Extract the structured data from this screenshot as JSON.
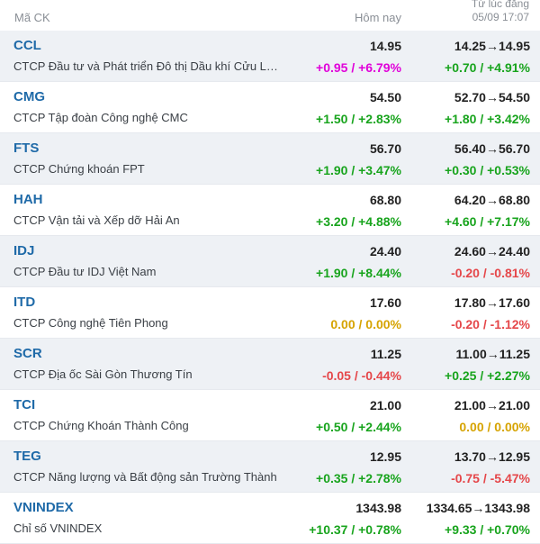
{
  "header": {
    "code_label": "Mã CK",
    "today_label": "Hôm nay",
    "since_label": "Từ lúc đăng",
    "since_time": "05/09 17:07"
  },
  "stocks": [
    {
      "code": "CCL",
      "name": "CTCP Đầu tư và Phát triển Đô thị Dầu khí Cửu Long",
      "price": "14.95",
      "change": "+0.95 / +6.79%",
      "change_type": "ceil",
      "range": "14.25→14.95",
      "change2": "+0.70 / +4.91%",
      "change2_type": "up"
    },
    {
      "code": "CMG",
      "name": "CTCP Tập đoàn Công nghệ CMC",
      "price": "54.50",
      "change": "+1.50 / +2.83%",
      "change_type": "up",
      "range": "52.70→54.50",
      "change2": "+1.80 / +3.42%",
      "change2_type": "up"
    },
    {
      "code": "FTS",
      "name": "CTCP Chứng khoán FPT",
      "price": "56.70",
      "change": "+1.90 / +3.47%",
      "change_type": "up",
      "range": "56.40→56.70",
      "change2": "+0.30 / +0.53%",
      "change2_type": "up"
    },
    {
      "code": "HAH",
      "name": "CTCP Vận tải và Xếp dỡ Hải An",
      "price": "68.80",
      "change": "+3.20 / +4.88%",
      "change_type": "up",
      "range": "64.20→68.80",
      "change2": "+4.60 / +7.17%",
      "change2_type": "up"
    },
    {
      "code": "IDJ",
      "name": "CTCP Đầu tư IDJ Việt Nam",
      "price": "24.40",
      "change": "+1.90 / +8.44%",
      "change_type": "up",
      "range": "24.60→24.40",
      "change2": "-0.20 / -0.81%",
      "change2_type": "down"
    },
    {
      "code": "ITD",
      "name": "CTCP Công nghệ Tiên Phong",
      "price": "17.60",
      "change": "0.00 / 0.00%",
      "change_type": "ref",
      "range": "17.80→17.60",
      "change2": "-0.20 / -1.12%",
      "change2_type": "down"
    },
    {
      "code": "SCR",
      "name": "CTCP Địa ốc Sài Gòn Thương Tín",
      "price": "11.25",
      "change": "-0.05 / -0.44%",
      "change_type": "down",
      "range": "11.00→11.25",
      "change2": "+0.25 / +2.27%",
      "change2_type": "up"
    },
    {
      "code": "TCI",
      "name": "CTCP Chứng Khoán Thành Công",
      "price": "21.00",
      "change": "+0.50 / +2.44%",
      "change_type": "up",
      "range": "21.00→21.00",
      "change2": "0.00 / 0.00%",
      "change2_type": "ref"
    },
    {
      "code": "TEG",
      "name": "CTCP Năng lượng và Bất động sản Trường Thành",
      "price": "12.95",
      "change": "+0.35 / +2.78%",
      "change_type": "up",
      "range": "13.70→12.95",
      "change2": "-0.75 / -5.47%",
      "change2_type": "down"
    },
    {
      "code": "VNINDEX",
      "name": "Chỉ số VNINDEX",
      "price": "1343.98",
      "change": "+10.37 / +0.78%",
      "change_type": "up",
      "range": "1334.65→1343.98",
      "change2": "+9.33 / +0.70%",
      "change2_type": "up"
    }
  ],
  "colors": {
    "up": "#18a41d",
    "down": "#e5474a",
    "ref": "#d6a300",
    "ceil": "#e000d9",
    "code": "#1f6aa8",
    "alt_row": "#eef1f5"
  }
}
